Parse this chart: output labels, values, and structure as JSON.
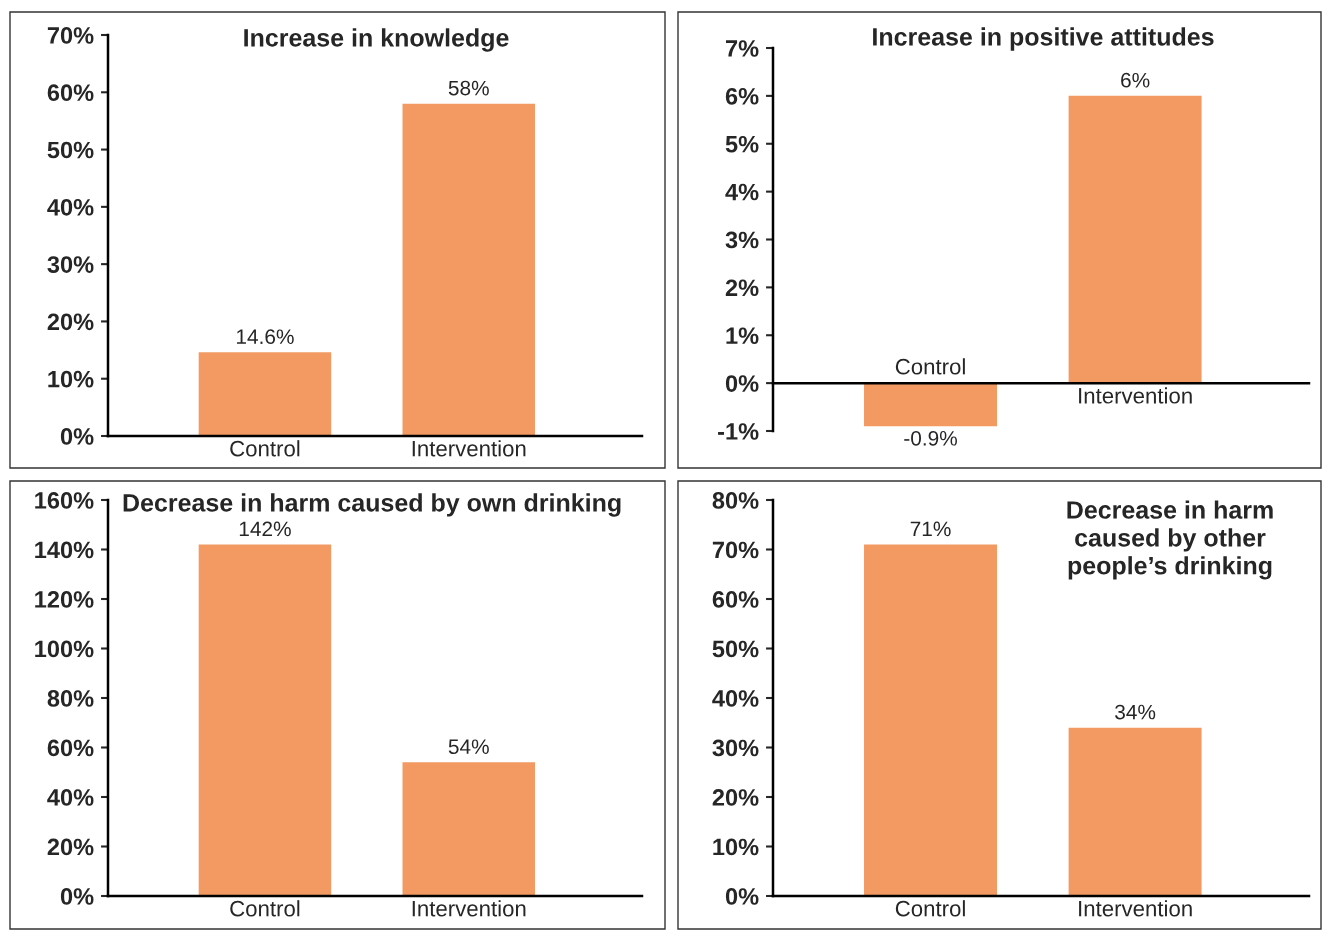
{
  "chart_data": [
    {
      "type": "bar",
      "title": "Increase in knowledge",
      "categories": [
        "Control",
        "Intervention"
      ],
      "values": [
        14.6,
        58
      ],
      "value_labels": [
        "14.6%",
        "58%"
      ],
      "color": "#f29a62",
      "ylim": [
        0,
        70
      ],
      "yticks": [
        {
          "value": 0,
          "label": "0%"
        },
        {
          "value": 10,
          "label": "10%"
        },
        {
          "value": 20,
          "label": "20%"
        },
        {
          "value": 30,
          "label": "30%"
        },
        {
          "value": 40,
          "label": "40%"
        },
        {
          "value": 50,
          "label": "50%"
        },
        {
          "value": 60,
          "label": "60%"
        },
        {
          "value": 70,
          "label": "70%"
        }
      ]
    },
    {
      "type": "bar",
      "title": "Increase in positive attitudes",
      "categories": [
        "Control",
        "Intervention"
      ],
      "values": [
        -0.9,
        6
      ],
      "value_labels": [
        "-0.9%",
        "6%"
      ],
      "color": "#f29a62",
      "ylim": [
        -1,
        7
      ],
      "yticks": [
        {
          "value": -1,
          "label": "-1%"
        },
        {
          "value": 0,
          "label": "0%"
        },
        {
          "value": 1,
          "label": "1%"
        },
        {
          "value": 2,
          "label": "2%"
        },
        {
          "value": 3,
          "label": "3%"
        },
        {
          "value": 4,
          "label": "4%"
        },
        {
          "value": 5,
          "label": "5%"
        },
        {
          "value": 6,
          "label": "6%"
        },
        {
          "value": 7,
          "label": "7%"
        }
      ]
    },
    {
      "type": "bar",
      "title": "Decrease in harm caused by own drinking",
      "categories": [
        "Control",
        "Intervention"
      ],
      "values": [
        142,
        54
      ],
      "value_labels": [
        "142%",
        "54%"
      ],
      "color": "#f29a62",
      "ylim": [
        0,
        160
      ],
      "yticks": [
        {
          "value": 0,
          "label": "0%"
        },
        {
          "value": 20,
          "label": "20%"
        },
        {
          "value": 40,
          "label": "40%"
        },
        {
          "value": 60,
          "label": "60%"
        },
        {
          "value": 80,
          "label": "80%"
        },
        {
          "value": 100,
          "label": "100%"
        },
        {
          "value": 120,
          "label": "120%"
        },
        {
          "value": 140,
          "label": "140%"
        },
        {
          "value": 160,
          "label": "160%"
        }
      ]
    },
    {
      "type": "bar",
      "title": "Decrease in harm\ncaused by other\npeople’s drinking",
      "categories": [
        "Control",
        "Intervention"
      ],
      "values": [
        71,
        34
      ],
      "value_labels": [
        "71%",
        "34%"
      ],
      "color": "#f29a62",
      "ylim": [
        0,
        80
      ],
      "yticks": [
        {
          "value": 0,
          "label": "0%"
        },
        {
          "value": 10,
          "label": "10%"
        },
        {
          "value": 20,
          "label": "20%"
        },
        {
          "value": 30,
          "label": "30%"
        },
        {
          "value": 40,
          "label": "40%"
        },
        {
          "value": 50,
          "label": "50%"
        },
        {
          "value": 60,
          "label": "60%"
        },
        {
          "value": 70,
          "label": "70%"
        },
        {
          "value": 80,
          "label": "80%"
        }
      ]
    }
  ]
}
